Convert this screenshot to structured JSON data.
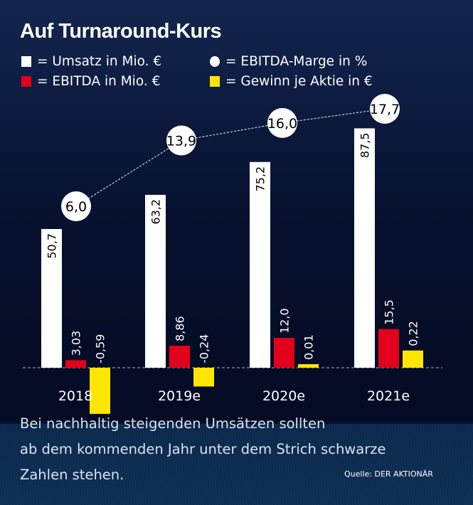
{
  "title": "Auf Turnaround-Kurs",
  "legend": [
    {
      "label": "= Umsatz in Mio. €",
      "shape": "square",
      "color": "#ffffff"
    },
    {
      "label": "= EBITDA-Marge in %",
      "shape": "circle",
      "color": "#ffffff"
    },
    {
      "label": "= EBITDA in Mio. €",
      "shape": "square",
      "color": "#e2001a"
    },
    {
      "label": "= Gewinn je Aktie in €",
      "shape": "square",
      "color": "#ffe600"
    }
  ],
  "chart_data": {
    "type": "bar",
    "title": "Auf Turnaround-Kurs",
    "categories": [
      "2018",
      "2019e",
      "2020e",
      "2021e"
    ],
    "series": [
      {
        "name": "Umsatz in Mio. €",
        "color": "#ffffff",
        "values": [
          50.7,
          63.2,
          75.2,
          87.5
        ],
        "labels": [
          "50,7",
          "63,2",
          "75,2",
          "87,5"
        ]
      },
      {
        "name": "EBITDA in Mio. €",
        "color": "#e2001a",
        "values": [
          3.03,
          8.86,
          12.0,
          15.5
        ],
        "labels": [
          "3,03",
          "8,86",
          "12,0",
          "15,5"
        ]
      },
      {
        "name": "Gewinn je Aktie in €",
        "color": "#ffe600",
        "values": [
          -0.59,
          -0.24,
          0.01,
          0.22
        ],
        "labels": [
          "-0,59",
          "-0,24",
          "0,01",
          "0,22"
        ]
      }
    ],
    "line_series": {
      "name": "EBITDA-Marge in %",
      "type": "line",
      "style": "dashed",
      "values": [
        6.0,
        13.9,
        16.0,
        17.7
      ],
      "labels": [
        "6,0",
        "13,9",
        "16,0",
        "17,7"
      ]
    },
    "baseline": 0,
    "grid": false,
    "legend_position": "top-left",
    "xlabel": "",
    "ylabel": ""
  },
  "footnote": [
    "Bei nachhaltig steigenden Umsätzen sollten",
    "ab dem kommenden Jahr unter dem Strich schwarze",
    "Zahlen stehen."
  ],
  "source": "Quelle: DER AKTIONÄR"
}
